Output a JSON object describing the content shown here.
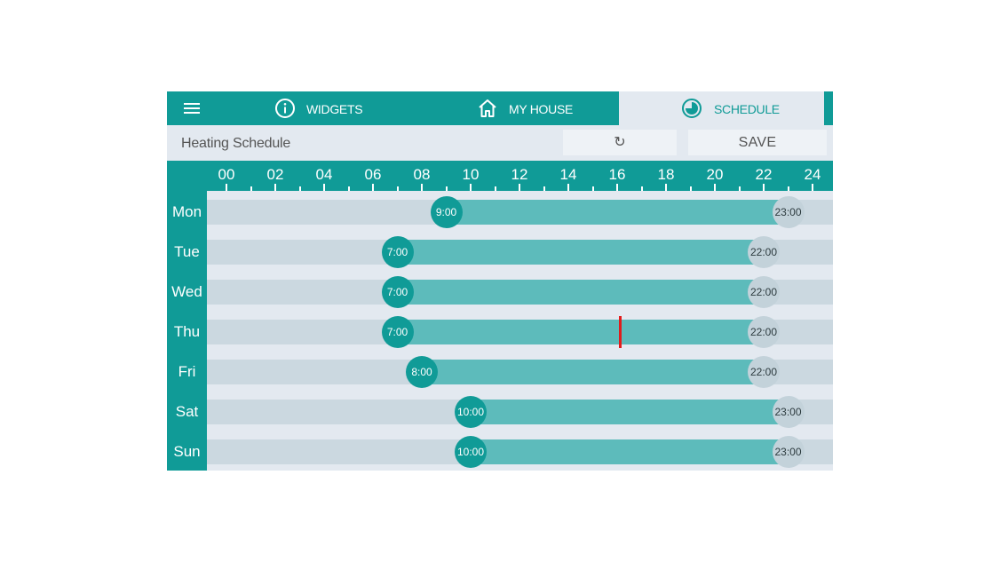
{
  "nav": {
    "tabs": [
      {
        "label": "WIDGETS",
        "icon": "info-icon"
      },
      {
        "label": "MY HOUSE",
        "icon": "home-icon"
      },
      {
        "label": "SCHEDULE",
        "icon": "schedule-icon",
        "active": true
      }
    ],
    "menu_icon": "hamburger-menu-icon"
  },
  "toolbar": {
    "title": "Heating Schedule",
    "reset_icon": "↻",
    "save_label": "SAVE"
  },
  "axis": {
    "hour_labels": [
      "00",
      "02",
      "04",
      "06",
      "08",
      "10",
      "12",
      "14",
      "16",
      "18",
      "20",
      "22",
      "24"
    ]
  },
  "schedule": [
    {
      "day": "Mon",
      "start": 9,
      "end": 23,
      "start_label": "9:00",
      "end_label": "23:00"
    },
    {
      "day": "Tue",
      "start": 7,
      "end": 22,
      "start_label": "7:00",
      "end_label": "22:00"
    },
    {
      "day": "Wed",
      "start": 7,
      "end": 22,
      "start_label": "7:00",
      "end_label": "22:00"
    },
    {
      "day": "Thu",
      "start": 7,
      "end": 22,
      "start_label": "7:00",
      "end_label": "22:00"
    },
    {
      "day": "Fri",
      "start": 8,
      "end": 22,
      "start_label": "8:00",
      "end_label": "22:00"
    },
    {
      "day": "Sat",
      "start": 10,
      "end": 23,
      "start_label": "10:00",
      "end_label": "23:00"
    },
    {
      "day": "Sun",
      "start": 10,
      "end": 23,
      "start_label": "10:00",
      "end_label": "23:00"
    }
  ],
  "current_time": {
    "day": "Thu",
    "hour": 16.1
  },
  "colors": {
    "primary": "#109b97",
    "fill": "#5dbbbb",
    "track": "#cbd8e0",
    "end_handle": "#c3d2da",
    "background": "#e3e9f0",
    "now_marker": "#e11d1d"
  }
}
